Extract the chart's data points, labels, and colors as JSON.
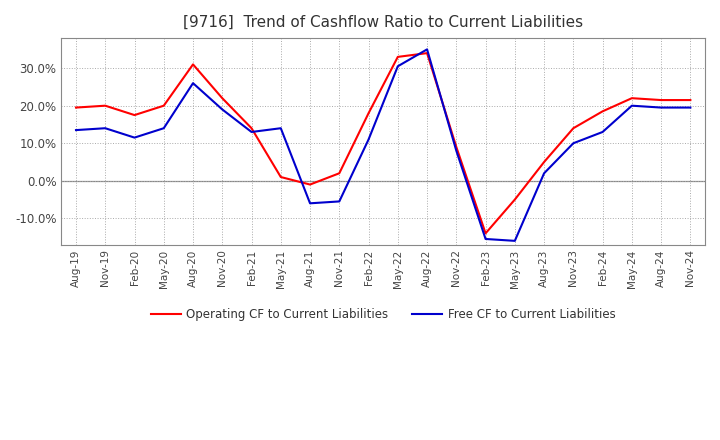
{
  "title": "[9716]  Trend of Cashflow Ratio to Current Liabilities",
  "x_labels": [
    "Aug-19",
    "Nov-19",
    "Feb-20",
    "May-20",
    "Aug-20",
    "Nov-20",
    "Feb-21",
    "May-21",
    "Aug-21",
    "Nov-21",
    "Feb-22",
    "May-22",
    "Aug-22",
    "Nov-22",
    "Feb-23",
    "May-23",
    "Aug-23",
    "Nov-23",
    "Feb-24",
    "May-24",
    "Aug-24",
    "Nov-24"
  ],
  "operating_cf": [
    19.5,
    20.0,
    17.5,
    20.0,
    31.0,
    22.0,
    14.0,
    1.0,
    -1.0,
    2.0,
    18.0,
    33.0,
    34.0,
    9.0,
    -14.0,
    -5.0,
    5.0,
    14.0,
    18.5,
    22.0,
    21.5,
    21.5
  ],
  "free_cf": [
    13.5,
    14.0,
    11.5,
    14.0,
    26.0,
    19.0,
    13.0,
    14.0,
    -6.0,
    -5.5,
    11.0,
    30.5,
    35.0,
    8.0,
    -15.5,
    -16.0,
    2.0,
    10.0,
    13.0,
    20.0,
    19.5,
    19.5
  ],
  "operating_cf_color": "#ff0000",
  "free_cf_color": "#0000cd",
  "ylim": [
    -17.0,
    38.0
  ],
  "yticks": [
    -10.0,
    0.0,
    10.0,
    20.0,
    30.0
  ],
  "background_color": "#ffffff",
  "grid_color": "#aaaaaa",
  "title_fontsize": 11,
  "legend_operating": "Operating CF to Current Liabilities",
  "legend_free": "Free CF to Current Liabilities"
}
